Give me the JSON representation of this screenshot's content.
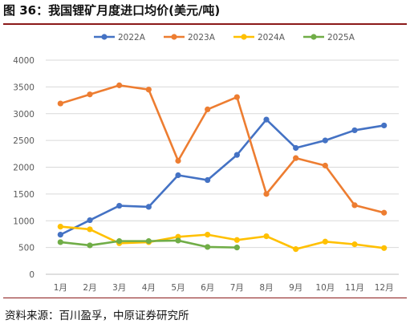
{
  "figure": {
    "title": "图 36：我国锂矿月度进口均价(美元/吨)",
    "source": "资料来源：百川盈孚，中原证券研究所"
  },
  "chart_data": {
    "type": "line",
    "title": "",
    "xlabel": "",
    "ylabel": "",
    "ylim": [
      0,
      4000
    ],
    "yticks": [
      0,
      500,
      1000,
      1500,
      2000,
      2500,
      3000,
      3500,
      4000
    ],
    "categories": [
      "1月",
      "2月",
      "3月",
      "4月",
      "5月",
      "6月",
      "7月",
      "8月",
      "9月",
      "10月",
      "11月",
      "12月"
    ],
    "legend_position": "top",
    "grid": true,
    "series": [
      {
        "name": "2022A",
        "color": "#4472C4",
        "values": [
          740,
          1010,
          1280,
          1260,
          1850,
          1760,
          2230,
          2890,
          2360,
          2500,
          2690,
          2780
        ]
      },
      {
        "name": "2023A",
        "color": "#ED7D31",
        "values": [
          3190,
          3360,
          3530,
          3450,
          2120,
          3080,
          3310,
          1500,
          2170,
          2030,
          1290,
          1150
        ]
      },
      {
        "name": "2024A",
        "color": "#FFC000",
        "values": [
          890,
          840,
          580,
          600,
          700,
          740,
          640,
          710,
          470,
          610,
          560,
          490
        ]
      },
      {
        "name": "2025A",
        "color": "#70AD47",
        "values": [
          600,
          540,
          620,
          620,
          630,
          510,
          500,
          null,
          null,
          null,
          null,
          null
        ]
      }
    ]
  }
}
